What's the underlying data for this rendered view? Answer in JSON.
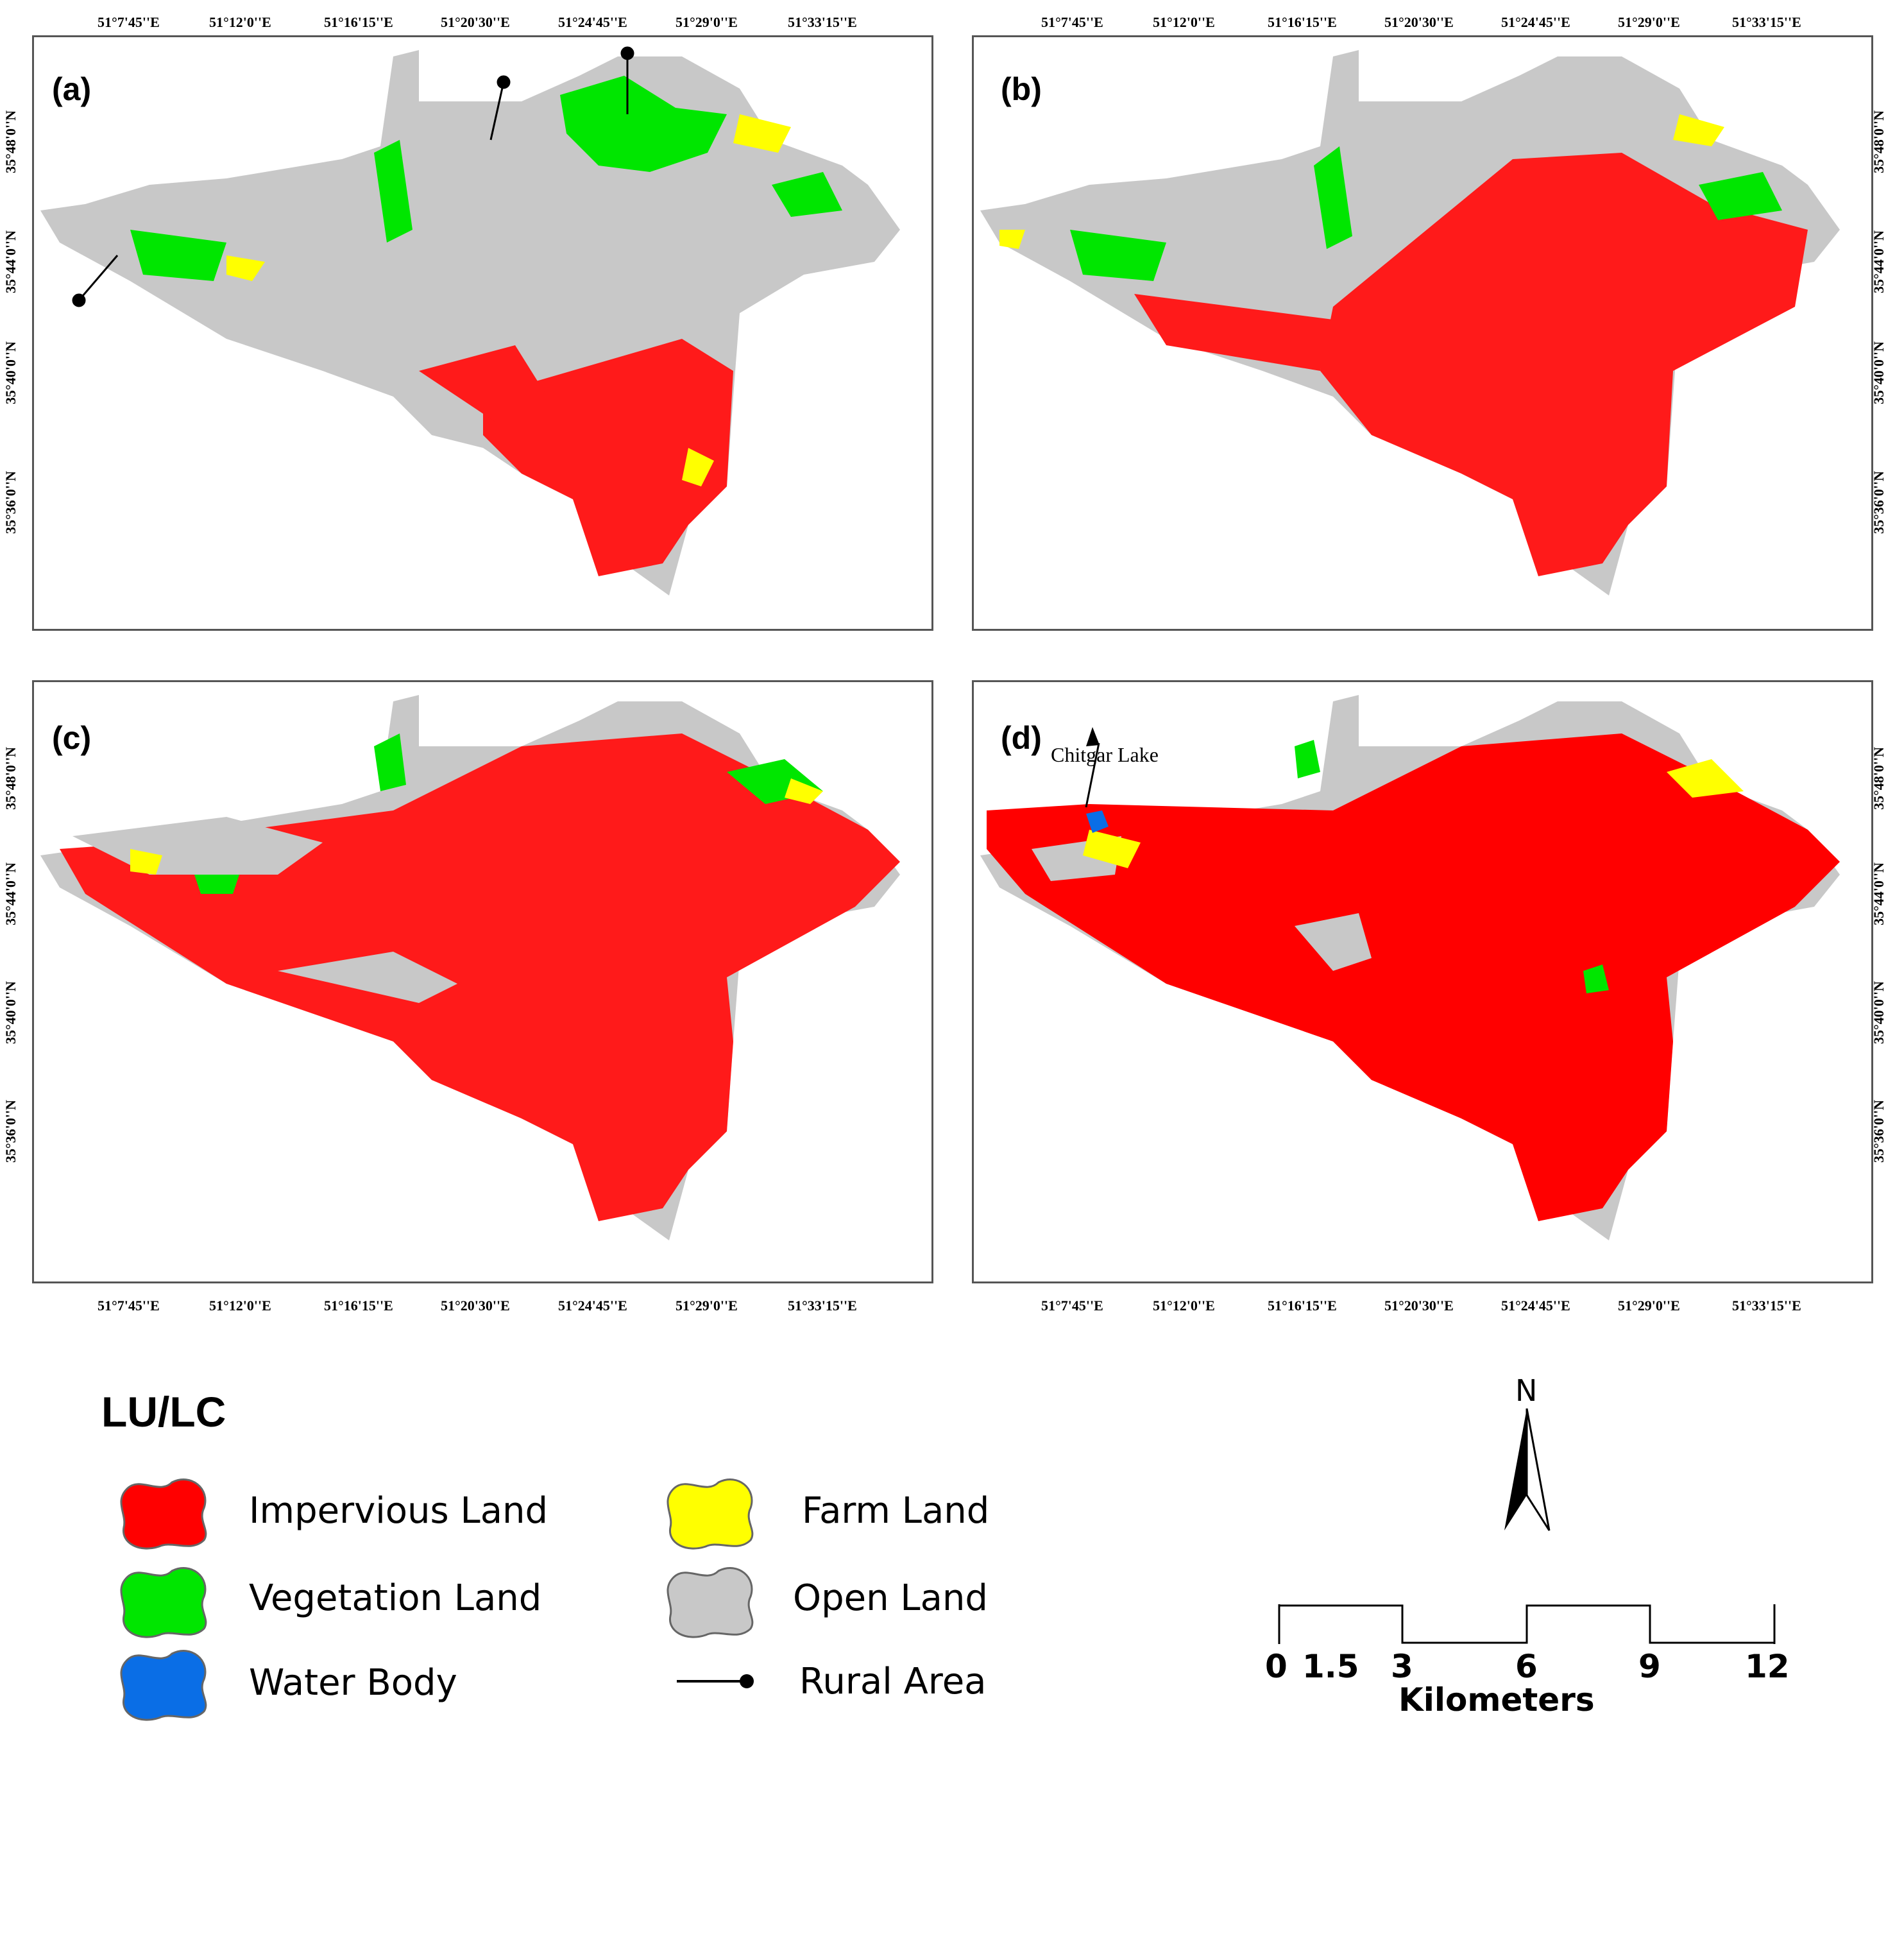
{
  "figure": {
    "lon_ticks": [
      "51°7'45''E",
      "51°12'0''E",
      "51°16'15''E",
      "51°20'30''E",
      "51°24'45''E",
      "51°29'0''E",
      "51°33'15''E"
    ],
    "lat_ticks": [
      "35°48'0''N",
      "35°44'0''N",
      "35°40'0''N",
      "35°36'0''N"
    ],
    "panels": [
      {
        "label": "(a)"
      },
      {
        "label": "(b)"
      },
      {
        "label": "(c)"
      },
      {
        "label": "(d)",
        "annotation": "Chitgar Lake"
      }
    ]
  },
  "legend": {
    "title": "LU/LC",
    "items": [
      {
        "label": "Impervious Land",
        "color": "#ff0000"
      },
      {
        "label": "Farm Land",
        "color": "#ffff00"
      },
      {
        "label": "Vegetation Land",
        "color": "#00e600"
      },
      {
        "label": "Open Land",
        "color": "#c8c8c8"
      },
      {
        "label": "Water Body",
        "color": "#0a6ee6"
      },
      {
        "label": "Rural Area",
        "color": "#000000"
      }
    ]
  },
  "north_arrow": {
    "label": "N"
  },
  "scale_bar": {
    "ticks": [
      "0",
      "1.5",
      "3",
      "6",
      "9",
      "12"
    ],
    "unit": "Kilometers"
  }
}
